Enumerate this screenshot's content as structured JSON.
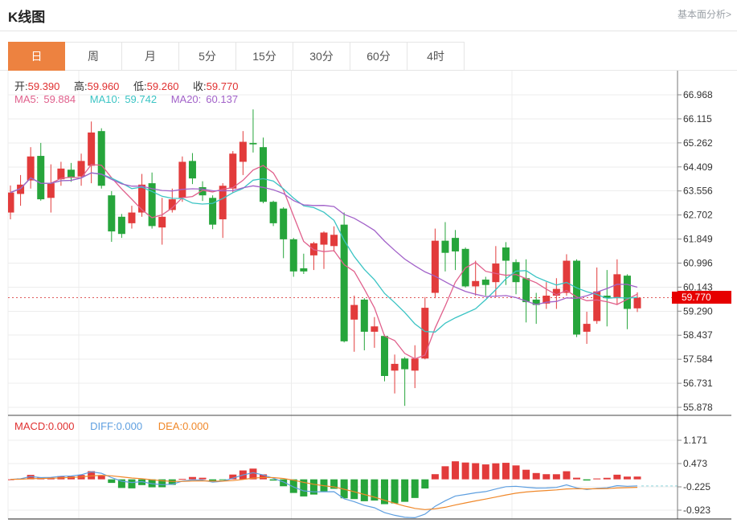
{
  "header": {
    "title": "K线图",
    "link": "基本面分析>"
  },
  "tabs": {
    "items": [
      "日",
      "周",
      "月",
      "5分",
      "15分",
      "30分",
      "60分",
      "4时"
    ],
    "active": "日"
  },
  "ohlc": {
    "open_label": "开:",
    "open_value": "59.390",
    "high_label": "高:",
    "high_value": "59.960",
    "low_label": "低:",
    "low_value": "59.260",
    "close_label": "收:",
    "close_value": "59.770"
  },
  "ma": {
    "ma5_label": "MA5:",
    "ma5_value": "59.884",
    "ma10_label": "MA10:",
    "ma10_value": "59.742",
    "ma20_label": "MA20:",
    "ma20_value": "60.137"
  },
  "macd": {
    "macd_label": "MACD:",
    "macd_value": "0.000",
    "diff_label": "DIFF:",
    "diff_value": "0.000",
    "dea_label": "DEA:",
    "dea_value": "0.000"
  },
  "price_badge": "59.770",
  "chart_data": {
    "type": "candlestick",
    "panels": [
      "price",
      "macd"
    ],
    "period": "日",
    "y_axis_ticks": [
      66.968,
      66.115,
      65.262,
      64.409,
      63.556,
      62.702,
      61.849,
      60.996,
      60.143,
      59.29,
      58.437,
      57.584,
      56.731,
      55.878
    ],
    "macd_axis_ticks": [
      1.171,
      0.473,
      -0.225,
      -0.923
    ],
    "last_price": 59.77,
    "last_candle": {
      "open": 59.39,
      "high": 59.96,
      "low": 59.26,
      "close": 59.77
    },
    "ma_periods": [
      5,
      10,
      20
    ],
    "ohlc_format": [
      "open",
      "close",
      "high",
      "low"
    ],
    "candles": [
      [
        62.79,
        63.5,
        63.75,
        62.55
      ],
      [
        63.45,
        63.78,
        64.12,
        63.03
      ],
      [
        63.93,
        64.78,
        65.11,
        63.64
      ],
      [
        64.8,
        63.26,
        65.26,
        63.21
      ],
      [
        63.31,
        63.83,
        64.5,
        62.79
      ],
      [
        63.97,
        64.35,
        64.59,
        63.74
      ],
      [
        64.31,
        64.02,
        64.55,
        63.88
      ],
      [
        64.07,
        64.62,
        64.88,
        63.74
      ],
      [
        64.45,
        65.63,
        66.02,
        63.83
      ],
      [
        65.68,
        63.74,
        65.78,
        63.64
      ],
      [
        63.4,
        62.12,
        63.55,
        61.75
      ],
      [
        62.64,
        62.03,
        62.74,
        61.89
      ],
      [
        62.41,
        62.79,
        63.03,
        62.22
      ],
      [
        62.79,
        63.78,
        64.16,
        62.64
      ],
      [
        63.83,
        62.31,
        64.21,
        62.22
      ],
      [
        62.26,
        62.64,
        63.31,
        61.65
      ],
      [
        62.88,
        63.26,
        63.64,
        62.79
      ],
      [
        63.31,
        64.59,
        64.78,
        63.17
      ],
      [
        64.62,
        64.0,
        64.9,
        63.8
      ],
      [
        63.69,
        63.4,
        63.9,
        63.2
      ],
      [
        63.31,
        62.36,
        63.4,
        62.2
      ],
      [
        62.55,
        63.74,
        63.83,
        61.89
      ],
      [
        63.64,
        64.88,
        64.97,
        63.5
      ],
      [
        64.59,
        65.3,
        65.68,
        64.12
      ],
      [
        65.26,
        65.21,
        66.45,
        64.92
      ],
      [
        65.11,
        63.17,
        65.45,
        63.12
      ],
      [
        63.17,
        62.41,
        63.21,
        62.31
      ],
      [
        62.93,
        61.84,
        62.98,
        61.17
      ],
      [
        61.84,
        60.7,
        61.89,
        60.51
      ],
      [
        60.81,
        60.7,
        61.33,
        60.61
      ],
      [
        61.27,
        61.7,
        61.75,
        60.75
      ],
      [
        61.65,
        62.08,
        62.12,
        60.79
      ],
      [
        61.6,
        62.0,
        62.3,
        61.4
      ],
      [
        62.36,
        58.22,
        62.79,
        58.18
      ],
      [
        58.99,
        59.51,
        59.84,
        57.85
      ],
      [
        59.7,
        58.56,
        59.75,
        57.9
      ],
      [
        58.56,
        58.75,
        59.08,
        57.99
      ],
      [
        58.41,
        56.99,
        58.46,
        56.8
      ],
      [
        57.18,
        57.42,
        57.75,
        56.37
      ],
      [
        57.61,
        57.23,
        57.66,
        55.93
      ],
      [
        57.18,
        57.61,
        58.08,
        56.56
      ],
      [
        57.61,
        59.41,
        59.79,
        57.58
      ],
      [
        59.94,
        61.79,
        62.22,
        59.75
      ],
      [
        61.79,
        61.36,
        62.45,
        60.7
      ],
      [
        61.89,
        61.41,
        62.17,
        60.75
      ],
      [
        61.5,
        60.17,
        61.55,
        60.13
      ],
      [
        60.17,
        60.36,
        61.08,
        59.84
      ],
      [
        60.41,
        60.22,
        60.51,
        59.84
      ],
      [
        60.32,
        60.98,
        61.6,
        59.79
      ],
      [
        61.55,
        61.08,
        61.74,
        60.22
      ],
      [
        61.03,
        60.32,
        61.13,
        59.89
      ],
      [
        60.46,
        59.61,
        61.13,
        58.89
      ],
      [
        59.7,
        59.51,
        59.94,
        58.84
      ],
      [
        59.56,
        59.84,
        60.32,
        59.37
      ],
      [
        59.84,
        60.08,
        60.46,
        59.37
      ],
      [
        59.94,
        61.08,
        61.31,
        59.84
      ],
      [
        61.08,
        58.46,
        61.13,
        58.37
      ],
      [
        58.56,
        58.84,
        59.27,
        58.13
      ],
      [
        58.94,
        59.99,
        60.84,
        58.84
      ],
      [
        59.84,
        59.75,
        60.75,
        58.75
      ],
      [
        59.75,
        60.6,
        61.13,
        59.51
      ],
      [
        60.55,
        59.37,
        60.6,
        58.65
      ],
      [
        59.39,
        59.77,
        59.96,
        59.26
      ]
    ],
    "colors": {
      "up": "#e23b3b",
      "down": "#26a53b",
      "ma5": "#e0608c",
      "ma10": "#3bc4c4",
      "ma20": "#a262c9",
      "diff": "#5e9fe0",
      "dea": "#f0882a",
      "diff_projection": "#8fd6de",
      "price_line": "#e05a5a",
      "badge": "#e60000",
      "grid": "#ececec",
      "axis": "#777777",
      "axis_text": "#333333",
      "active_tab": "#ed8240"
    }
  }
}
